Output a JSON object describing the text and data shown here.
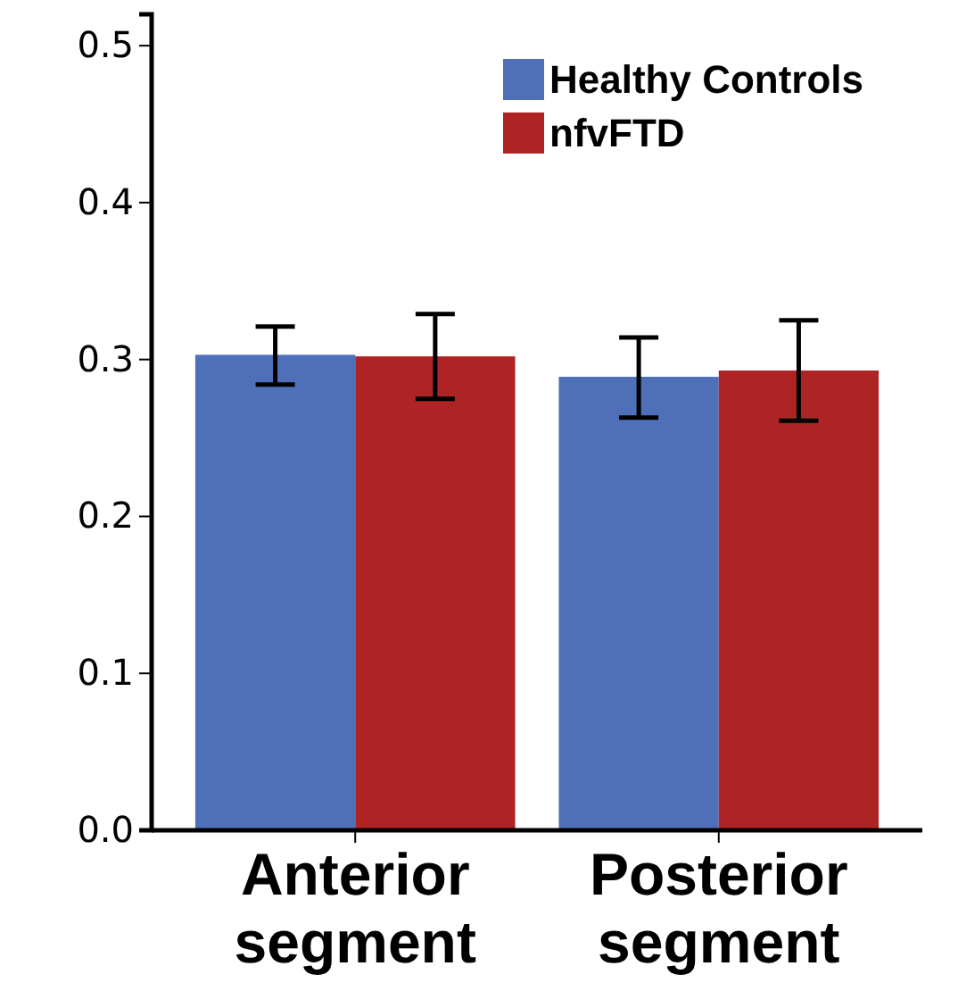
{
  "chart_data": {
    "type": "bar",
    "categories": [
      "Anterior segment",
      "Posterior segment"
    ],
    "series": [
      {
        "name": "Healthy Controls",
        "color": "#4f70b8",
        "values": [
          0.303,
          0.289
        ],
        "errors": [
          [
            0.284,
            0.321
          ],
          [
            0.263,
            0.314
          ]
        ]
      },
      {
        "name": "nfvFTD",
        "color": "#ae2424",
        "values": [
          0.302,
          0.293
        ],
        "errors": [
          [
            0.275,
            0.329
          ],
          [
            0.261,
            0.325
          ]
        ]
      }
    ],
    "ylim": [
      0,
      0.52
    ],
    "yticks": [
      {
        "value": 0,
        "label": "0.0"
      },
      0.1,
      0.2,
      0.3,
      0.4,
      0.5
    ],
    "legend": "top right",
    "grid": false
  }
}
